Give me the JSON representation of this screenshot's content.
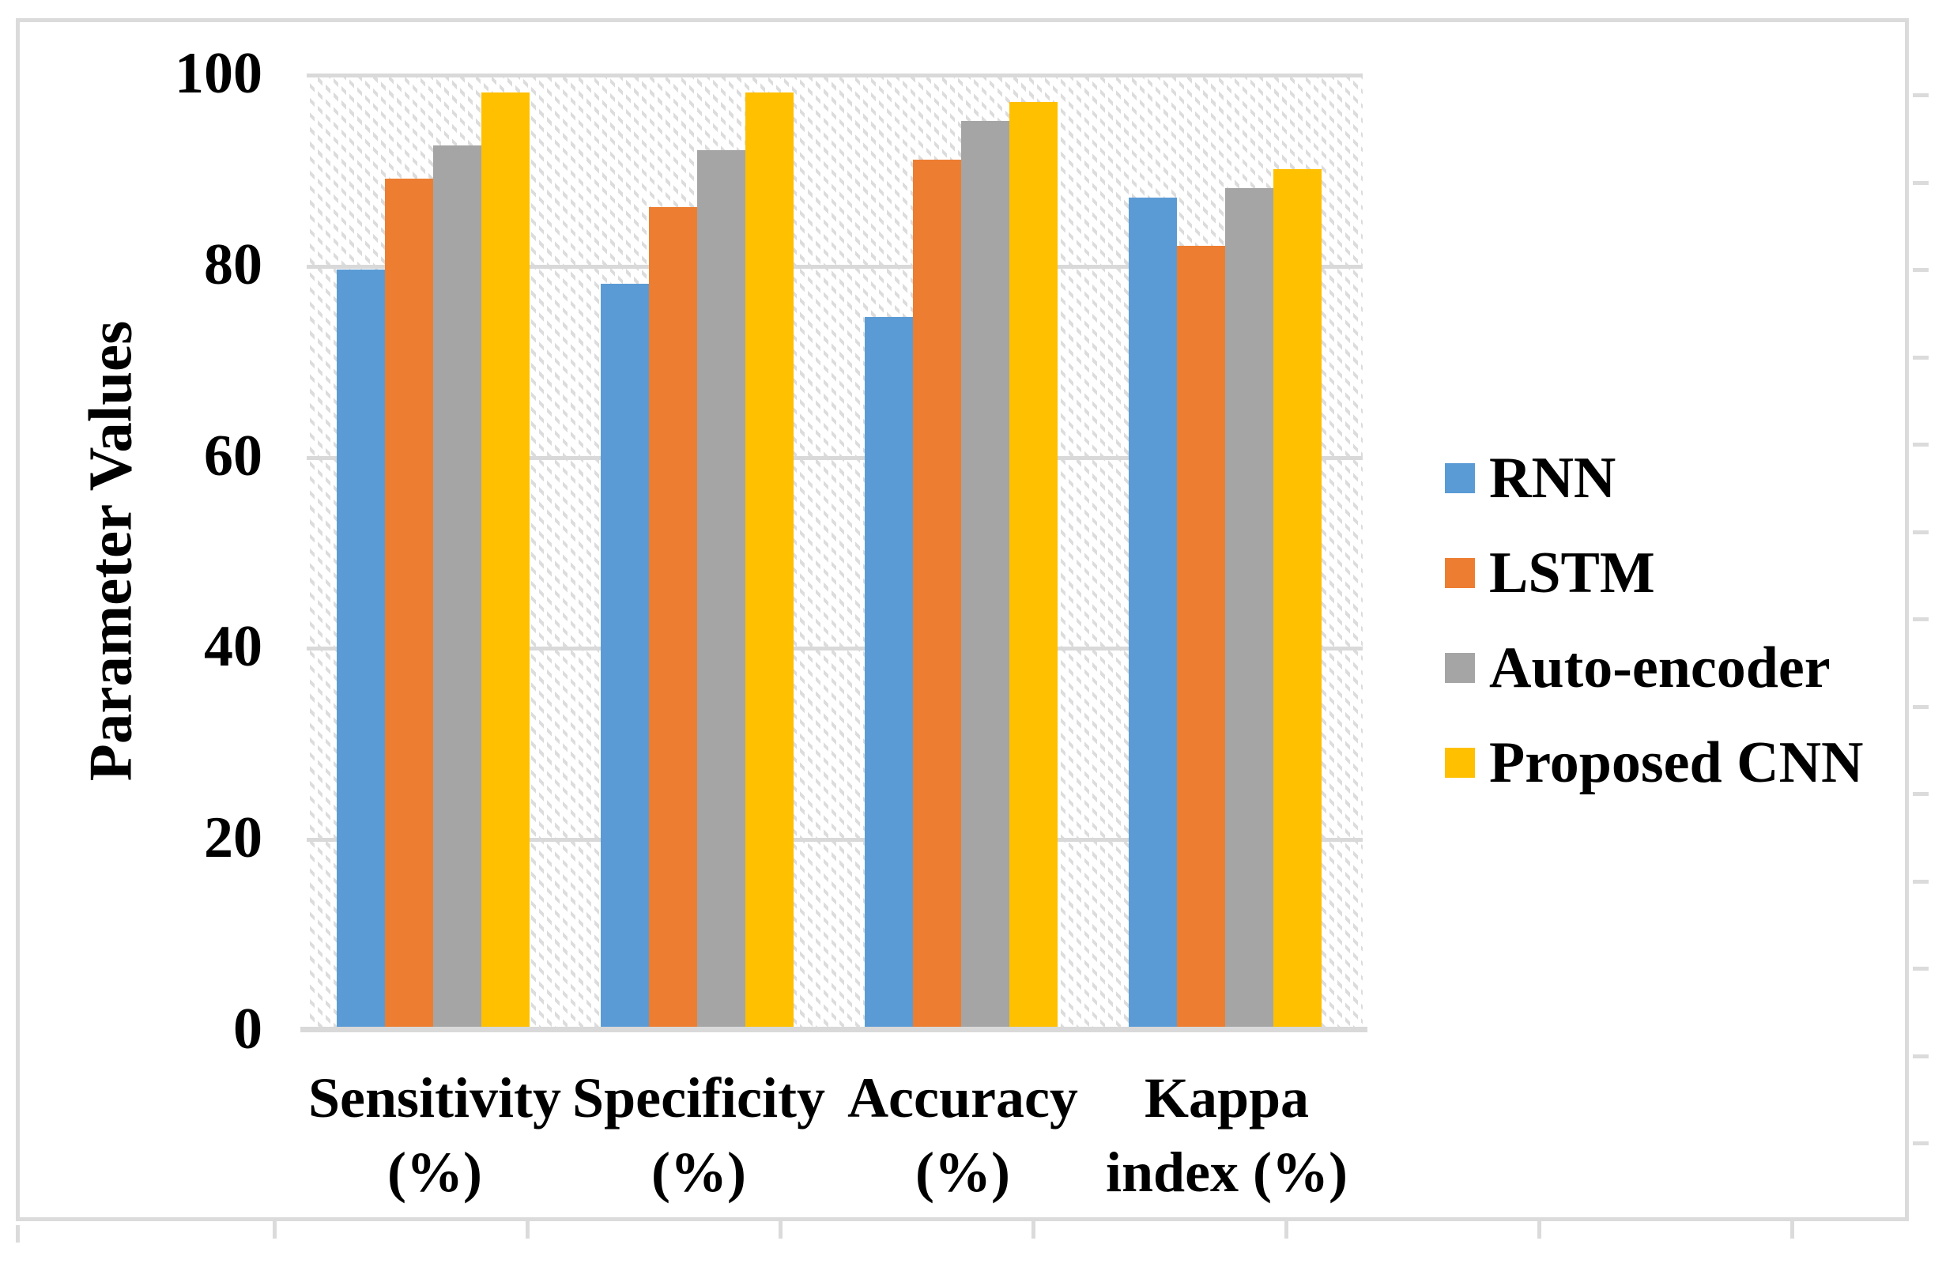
{
  "figure": {
    "background_color": "#ffffff",
    "frame_color": "#dbdbdb",
    "gridline_color": "#d9d9d9",
    "hatch_color": "#dcdcdc",
    "text_color": "#000000"
  },
  "chart_data": {
    "type": "bar",
    "title": "",
    "xlabel": "",
    "ylabel": "Parameter Values",
    "ylim": [
      0,
      100
    ],
    "yticks": [
      0,
      20,
      40,
      60,
      80,
      100
    ],
    "grid": "horizontal",
    "plot_background": "light-downward-diagonal-hatch",
    "legend_position": "right",
    "categories": [
      "Sensitivity (%)",
      "Specificity (%)",
      "Accuracy (%)",
      "Kappa index (%)"
    ],
    "category_labels": [
      {
        "line1": "Sensitivity",
        "line2": "(%)"
      },
      {
        "line1": "Specificity",
        "line2": "(%)"
      },
      {
        "line1": "Accuracy",
        "line2": "(%)"
      },
      {
        "line1": "Kappa",
        "line2": "index (%)"
      }
    ],
    "series": [
      {
        "name": "RNN",
        "color": "#5B9BD5",
        "values": [
          79.5,
          78,
          74.5,
          87
        ]
      },
      {
        "name": "LSTM",
        "color": "#ED7D31",
        "values": [
          89,
          86,
          91,
          82
        ]
      },
      {
        "name": "Auto-encoder",
        "color": "#A5A5A5",
        "values": [
          92.5,
          92,
          95,
          88
        ]
      },
      {
        "name": "Proposed CNN",
        "color": "#FFC000",
        "values": [
          98,
          98,
          97,
          90
        ]
      }
    ]
  }
}
